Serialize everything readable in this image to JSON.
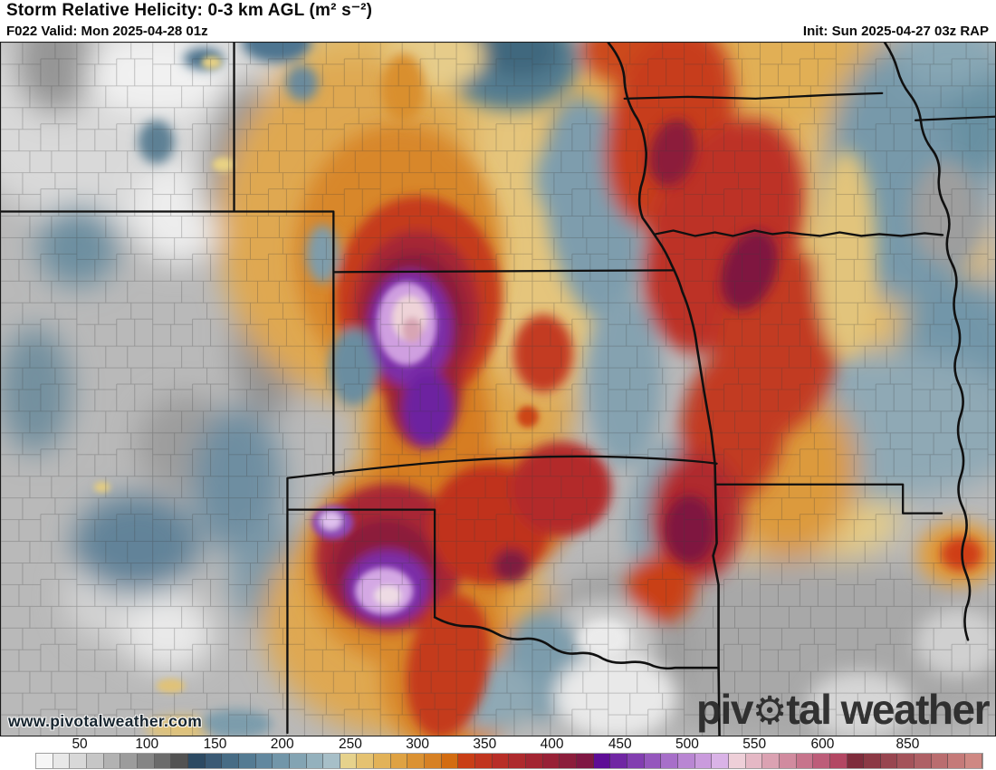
{
  "header": {
    "title": "Storm Relative Helicity: 0-3 km AGL (m² s⁻²)",
    "valid_line": "F022 Valid: Mon 2025-04-28 01z",
    "init_line": "Init: Sun 2025-04-27 03z RAP"
  },
  "map": {
    "watermark": "www.pivotalweather.com",
    "logo": {
      "pre": "piv",
      "gear_icon": "⚙",
      "post": "tal weather"
    }
  },
  "colorbar": {
    "ticks": [
      {
        "label": "50",
        "pos": 0.046
      },
      {
        "label": "100",
        "pos": 0.117
      },
      {
        "label": "150",
        "pos": 0.189
      },
      {
        "label": "200",
        "pos": 0.26
      },
      {
        "label": "250",
        "pos": 0.332
      },
      {
        "label": "300",
        "pos": 0.403
      },
      {
        "label": "350",
        "pos": 0.474
      },
      {
        "label": "400",
        "pos": 0.545
      },
      {
        "label": "450",
        "pos": 0.617
      },
      {
        "label": "500",
        "pos": 0.688
      },
      {
        "label": "550",
        "pos": 0.759
      },
      {
        "label": "600",
        "pos": 0.831
      },
      {
        "label": "850",
        "pos": 0.921
      }
    ],
    "segments": [
      "#f6f6f6",
      "#e8e8e8",
      "#d8d8d8",
      "#c6c6c6",
      "#b2b2b2",
      "#9c9c9c",
      "#858585",
      "#6b6b6b",
      "#525252",
      "#2c4a63",
      "#3a5a75",
      "#476c85",
      "#547b93",
      "#62889f",
      "#7296a9",
      "#83a4b3",
      "#94b1bd",
      "#a7bfc8",
      "#e6d28c",
      "#e5c271",
      "#e2b258",
      "#dfa243",
      "#db9233",
      "#d78124",
      "#d36c11",
      "#c93e16",
      "#c1351f",
      "#b82e27",
      "#ae2a2d",
      "#a32532",
      "#982136",
      "#8c1d3b",
      "#7f1743",
      "#5e0d96",
      "#7026a3",
      "#823eb0",
      "#9557bd",
      "#a76fc9",
      "#b986d3",
      "#ca9bdd",
      "#dab3e7",
      "#eecfd8",
      "#e5b8c5",
      "#dba2b2",
      "#d18b9f",
      "#c7748c",
      "#bd5d79",
      "#b34763",
      "#7f2c3c",
      "#8c3945",
      "#984650",
      "#a4535a",
      "#af6065",
      "#ba6d6f",
      "#c57a79",
      "#cf8883"
    ]
  }
}
